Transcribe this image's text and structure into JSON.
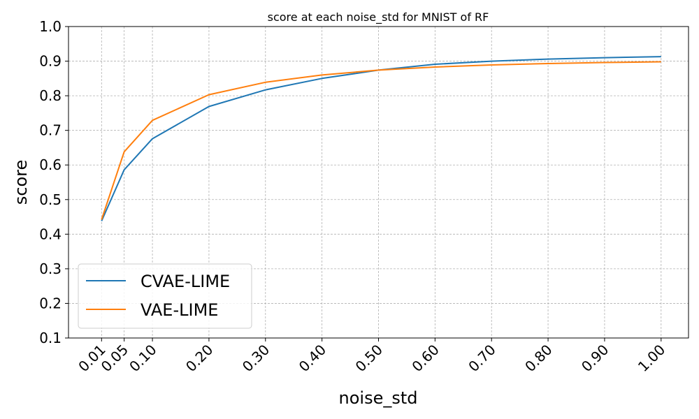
{
  "chart_data": {
    "type": "line",
    "title": "score at each noise_std for MNIST of RF",
    "xlabel": "noise_std",
    "ylabel": "score",
    "x": [
      0.01,
      0.05,
      0.1,
      0.2,
      0.3,
      0.4,
      0.5,
      0.6,
      0.7,
      0.8,
      0.9,
      1.0
    ],
    "x_tick_labels": [
      "0.01",
      "0.05",
      "0.10",
      "0.20",
      "0.30",
      "0.40",
      "0.50",
      "0.60",
      "0.70",
      "0.80",
      "0.90",
      "1.00"
    ],
    "y_tick_labels": [
      "0.1",
      "0.2",
      "0.3",
      "0.4",
      "0.5",
      "0.6",
      "0.7",
      "0.8",
      "0.9",
      "1.0"
    ],
    "ylim": [
      0.1,
      1.0
    ],
    "grid": true,
    "legend_position": "lower-left",
    "series": [
      {
        "name": "CVAE-LIME",
        "color": "#1f77b4",
        "values": [
          0.438,
          0.586,
          0.676,
          0.769,
          0.817,
          0.85,
          0.874,
          0.891,
          0.9,
          0.906,
          0.91,
          0.913
        ]
      },
      {
        "name": "VAE-LIME",
        "color": "#ff7f0e",
        "values": [
          0.442,
          0.638,
          0.729,
          0.803,
          0.839,
          0.86,
          0.874,
          0.883,
          0.889,
          0.893,
          0.896,
          0.898
        ]
      }
    ]
  }
}
